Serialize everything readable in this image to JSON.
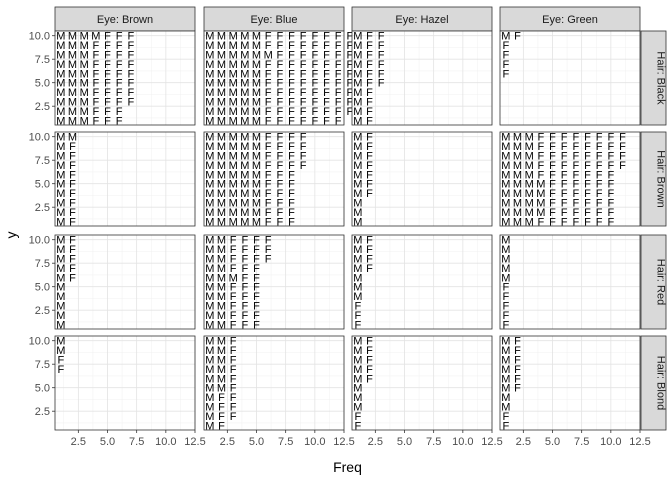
{
  "chart_data": {
    "type": "scatter",
    "marker": "text",
    "xlabel": "Freq",
    "ylabel": "y",
    "xlim": [
      0.5,
      12.5
    ],
    "ylim": [
      0.5,
      10.5
    ],
    "x_ticks": [
      2.5,
      5.0,
      7.5,
      10.0,
      12.5
    ],
    "x_tick_labels": [
      "2.5",
      "5.0",
      "7.5",
      "10.0",
      "12.5"
    ],
    "y_ticks": [
      2.5,
      5.0,
      7.5,
      10.0
    ],
    "y_tick_labels": [
      "2.5",
      "5.0",
      "7.5",
      "10.0"
    ],
    "grid": true,
    "facet_columns": [
      "Eye: Brown",
      "Eye: Blue",
      "Eye: Hazel",
      "Eye: Green"
    ],
    "facet_rows": [
      "Hair: Black",
      "Hair: Brown",
      "Hair: Red",
      "Hair: Blond"
    ],
    "panels": [
      [
        [
          "MMMFFF",
          "MMMFFF",
          "MMMFFFF",
          "MMMFFFF",
          "MMMFFFF",
          "MMMFFFF",
          "MMMFFFF",
          "MMMFFFF",
          "MMMFFFF",
          "MMMMFFF"
        ],
        [
          "MF",
          "MF",
          "MF",
          "MF",
          "MF",
          "MF",
          "MF",
          "MF",
          "MF",
          "MM"
        ],
        [
          "M",
          "M",
          "M",
          "M",
          "M",
          "MF",
          "MF",
          "MF",
          "MF",
          "MF"
        ],
        [
          "",
          "",
          "",
          "",
          "",
          "",
          "F",
          "F",
          "M",
          "M"
        ]
      ],
      [
        [
          "MMMMMFFFFFFF",
          "MMMMMFFFFFFFF",
          "MMMMMFFFFFFFF",
          "MMMMMFFFFFFFF",
          "MMMMMFFFFFFFF",
          "MMMMMFFFFFFFF",
          "MMMMMFFFFFFFF",
          "MMMMMMFFFFFFF",
          "MMMMMFFFFFFFF",
          "MMMMMFFFFFFFF"
        ],
        [
          "MMMMMFFF",
          "MMMMMFFF",
          "MMMMMFFF",
          "MMMMMFFF",
          "MMMMMFFF",
          "MMMMMFFF",
          "MMMMMFFFF",
          "MMMMMFFFF",
          "MMMMMFFFF",
          "MMMMMFFFF"
        ],
        [
          "MMFFF",
          "MMFFF",
          "MMFFF",
          "MMFFF",
          "MMFFF",
          "MMMFF",
          "MMFFF",
          "MMFFFF",
          "MMFFFF",
          "MMFFFF"
        ],
        [
          "MF",
          "MFF",
          "MFF",
          "MFF",
          "MMF",
          "MMF",
          "MMF",
          "MMF",
          "MMF",
          "MMF"
        ]
      ],
      [
        [
          "MF",
          "MF",
          "MF",
          "MF",
          "MFF",
          "MFF",
          "MFF",
          "MFF",
          "MFF",
          "MFF"
        ],
        [
          "M",
          "M",
          "M",
          "MF",
          "MF",
          "MF",
          "MF",
          "MF",
          "MF",
          "MF"
        ],
        [
          "F",
          "F",
          "F",
          "M",
          "M",
          "M",
          "MF",
          "MF",
          "MF",
          "MF"
        ],
        [
          "F",
          "F",
          "M",
          "M",
          "M",
          "MF",
          "MF",
          "MF",
          "MF",
          "MF"
        ]
      ],
      [
        [
          "",
          "",
          "",
          "",
          "",
          "F",
          "F",
          "F",
          "F",
          "MF"
        ],
        [
          "MMMFFFFFFF",
          "MMMMFFFFFF",
          "MMMMFFFFFF",
          "MMMMFFFFFF",
          "MMMMFFFFFF",
          "MMMFFFFFFF",
          "MMMFFFFFFFF",
          "MMMFFFFFFFF",
          "MMMFFFFFFFF",
          "MMMFFFFFFFF"
        ],
        [
          "F",
          "F",
          "F",
          "F",
          "F",
          "M",
          "M",
          "M",
          "M",
          "M"
        ],
        [
          "F",
          "F",
          "M",
          "M",
          "MF",
          "MF",
          "MF",
          "MF",
          "MF",
          "MF"
        ]
      ]
    ]
  }
}
